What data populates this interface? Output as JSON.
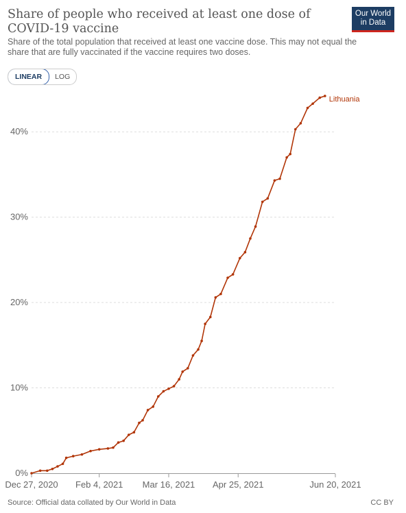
{
  "header": {
    "title": "Share of people who received at least one dose of COVID-19 vaccine",
    "subtitle": "Share of the total population that received at least one vaccine dose. This may not equal the share that are fully vaccinated if the vaccine requires two doses.",
    "logo_line1": "Our World",
    "logo_line2": "in Data"
  },
  "toggle": {
    "linear_label": "LINEAR",
    "log_label": "LOG",
    "selected": "LINEAR"
  },
  "footer": {
    "source": "Source: Official data collated by Our World in Data",
    "license": "CC BY"
  },
  "colors": {
    "series": "#b13507",
    "grid": "#dddddd",
    "axis_text": "#666666",
    "logo_bg": "#1d3d63",
    "logo_accent": "#ce261e"
  },
  "chart_data": {
    "type": "line",
    "x_type": "date",
    "xlim": [
      "2020-12-27",
      "2021-06-20"
    ],
    "ylim": [
      0,
      45
    ],
    "y_ticks": [
      0,
      10,
      20,
      30,
      40
    ],
    "y_tick_labels": [
      "0%",
      "10%",
      "20%",
      "30%",
      "40%"
    ],
    "x_ticks": [
      "2020-12-27",
      "2021-02-04",
      "2021-03-16",
      "2021-04-25",
      "2021-06-20"
    ],
    "x_tick_labels": [
      "Dec 27, 2020",
      "Feb 4, 2021",
      "Mar 16, 2021",
      "Apr 25, 2021",
      "Jun 20, 2021"
    ],
    "grid": true,
    "series": [
      {
        "name": "Lithuania",
        "color": "#b13507",
        "points": [
          [
            "2020-12-27",
            0.0
          ],
          [
            "2021-01-01",
            0.3
          ],
          [
            "2021-01-05",
            0.3
          ],
          [
            "2021-01-08",
            0.5
          ],
          [
            "2021-01-11",
            0.8
          ],
          [
            "2021-01-14",
            1.1
          ],
          [
            "2021-01-16",
            1.8
          ],
          [
            "2021-01-20",
            2.0
          ],
          [
            "2021-01-25",
            2.2
          ],
          [
            "2021-01-30",
            2.6
          ],
          [
            "2021-02-04",
            2.8
          ],
          [
            "2021-02-09",
            2.9
          ],
          [
            "2021-02-12",
            3.0
          ],
          [
            "2021-02-15",
            3.6
          ],
          [
            "2021-02-18",
            3.8
          ],
          [
            "2021-02-21",
            4.5
          ],
          [
            "2021-02-24",
            4.8
          ],
          [
            "2021-02-27",
            5.9
          ],
          [
            "2021-03-01",
            6.2
          ],
          [
            "2021-03-04",
            7.4
          ],
          [
            "2021-03-07",
            7.8
          ],
          [
            "2021-03-10",
            9.0
          ],
          [
            "2021-03-13",
            9.6
          ],
          [
            "2021-03-16",
            9.9
          ],
          [
            "2021-03-19",
            10.2
          ],
          [
            "2021-03-22",
            11.0
          ],
          [
            "2021-03-24",
            11.9
          ],
          [
            "2021-03-27",
            12.3
          ],
          [
            "2021-03-30",
            13.8
          ],
          [
            "2021-04-02",
            14.5
          ],
          [
            "2021-04-04",
            15.5
          ],
          [
            "2021-04-06",
            17.5
          ],
          [
            "2021-04-09",
            18.3
          ],
          [
            "2021-04-12",
            20.6
          ],
          [
            "2021-04-15",
            21.0
          ],
          [
            "2021-04-19",
            22.9
          ],
          [
            "2021-04-22",
            23.3
          ],
          [
            "2021-04-26",
            25.2
          ],
          [
            "2021-04-29",
            25.9
          ],
          [
            "2021-05-02",
            27.5
          ],
          [
            "2021-05-05",
            28.9
          ],
          [
            "2021-05-09",
            31.8
          ],
          [
            "2021-05-12",
            32.2
          ],
          [
            "2021-05-16",
            34.3
          ],
          [
            "2021-05-19",
            34.5
          ],
          [
            "2021-05-23",
            37.0
          ],
          [
            "2021-05-25",
            37.4
          ],
          [
            "2021-05-28",
            40.3
          ],
          [
            "2021-05-31",
            41.0
          ],
          [
            "2021-06-04",
            42.8
          ],
          [
            "2021-06-07",
            43.3
          ],
          [
            "2021-06-11",
            44.0
          ],
          [
            "2021-06-14",
            44.2
          ]
        ]
      }
    ]
  }
}
